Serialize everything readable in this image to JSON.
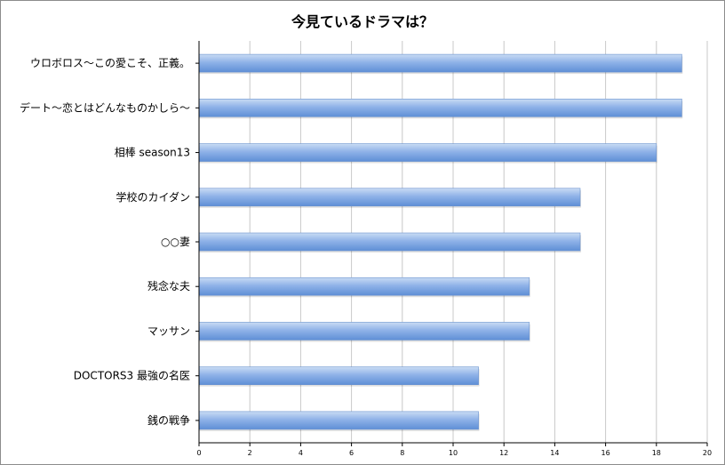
{
  "chart_data": {
    "type": "bar",
    "orientation": "horizontal",
    "title": "今見ているドラマは？",
    "categories": [
      "ウロボロス〜この愛こそ、正義。",
      "デート〜恋とはどんなものかしら〜",
      "相棒 season13",
      "学校のカイダン",
      "○○妻",
      "残念な夫",
      "マッサン",
      "DOCTORS3 最強の名医",
      "銭の戦争"
    ],
    "values": [
      19,
      19,
      18,
      15,
      15,
      13,
      13,
      11,
      11
    ],
    "xlim": [
      0,
      20
    ],
    "xticks": [
      0,
      2,
      4,
      6,
      8,
      10,
      12,
      14,
      16,
      18,
      20
    ],
    "grid": true,
    "legend": "none",
    "xlabel": "",
    "ylabel": "",
    "colors": {
      "bar_light": "#c9dcf4",
      "bar_mid": "#8fb2e8",
      "bar_dark": "#5f8fd6",
      "grid": "#c8c8c8",
      "axis": "#000000"
    }
  }
}
